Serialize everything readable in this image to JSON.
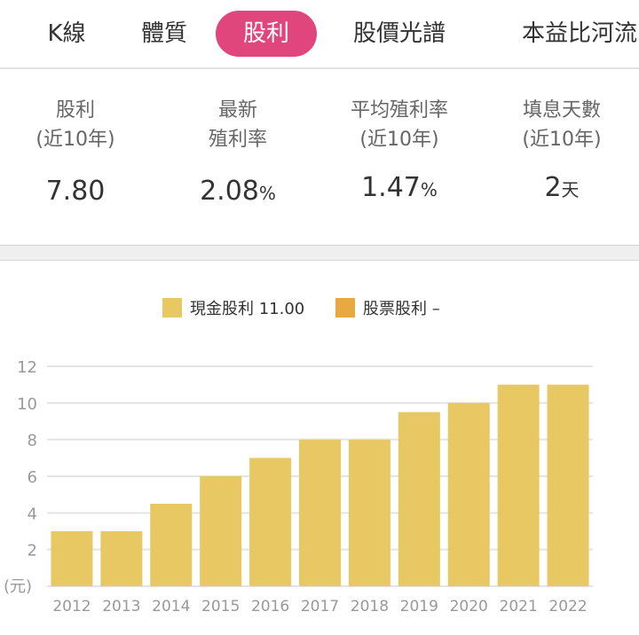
{
  "tabs": [
    {
      "label": "K線"
    },
    {
      "label": "體質"
    },
    {
      "label": "股利",
      "active": true
    },
    {
      "label": "股價光譜"
    },
    {
      "label": "本益比河流"
    }
  ],
  "stats": [
    {
      "label1": "股利",
      "label2": "(近10年)",
      "value": "7.80",
      "unit": ""
    },
    {
      "label1": "最新",
      "label2": "殖利率",
      "value": "2.08",
      "unit": "%"
    },
    {
      "label1": "平均殖利率",
      "label2": "(近10年)",
      "value": "1.47",
      "unit": "%"
    },
    {
      "label1": "填息天數",
      "label2": "(近10年)",
      "value": "2",
      "unit": "天"
    }
  ],
  "colors": {
    "accent": "#e0457b",
    "cash": "#e8c862",
    "stock": "#e8a940"
  },
  "chart_data": {
    "type": "bar",
    "legend": [
      {
        "name": "現金股利 11.00"
      },
      {
        "name": "股票股利 –"
      }
    ],
    "categories": [
      "2012",
      "2013",
      "2014",
      "2015",
      "2016",
      "2017",
      "2018",
      "2019",
      "2020",
      "2021",
      "2022"
    ],
    "series": [
      {
        "name": "現金股利",
        "values": [
          3,
          3,
          4.5,
          6,
          7,
          8,
          8,
          9.5,
          10,
          11,
          11
        ]
      }
    ],
    "ylabel": "(元)",
    "yticks": [
      2,
      4,
      6,
      8,
      10,
      12
    ],
    "ylim": [
      0,
      12
    ],
    "grid": true
  }
}
